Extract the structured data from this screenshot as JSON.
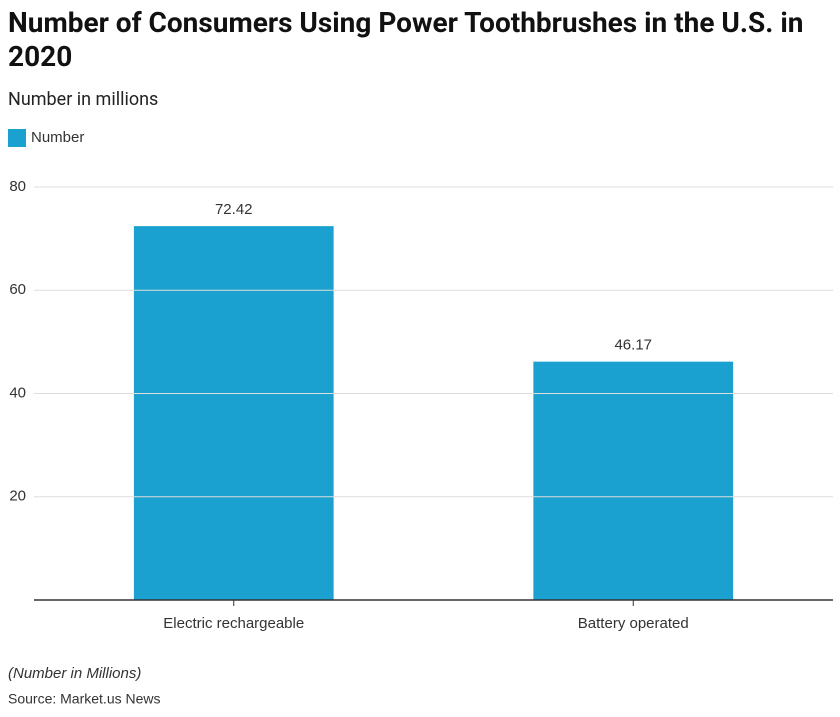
{
  "chart_data": {
    "type": "bar",
    "title": "Number of Consumers Using Power Toothbrushes in the U.S. in 2020",
    "subtitle": "Number in millions",
    "categories": [
      "Electric rechargeable",
      "Battery operated"
    ],
    "series": [
      {
        "name": "Number",
        "color": "#1ba1cf",
        "values": [
          72.42,
          46.17
        ]
      }
    ],
    "ylim": [
      0,
      80
    ],
    "yticks": [
      20,
      40,
      60,
      80
    ],
    "grid": true,
    "note": "(Number in Millions)",
    "source": "Source: Market.us News"
  }
}
